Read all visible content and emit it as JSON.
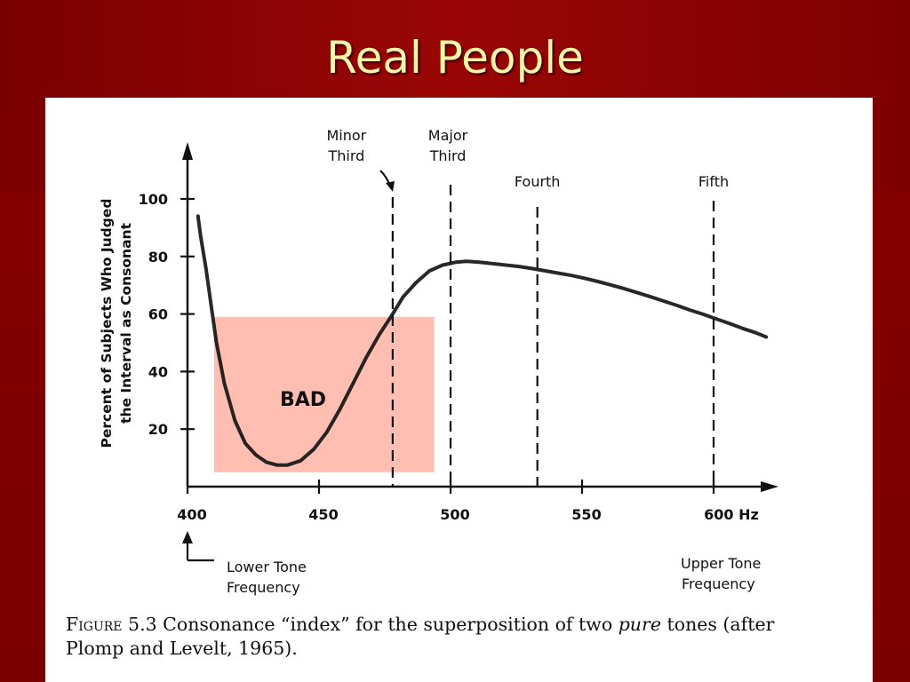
{
  "slide": {
    "title": "Real People"
  },
  "figure": {
    "caption_label": "Figure",
    "caption_number": "5.3",
    "caption_text_before_em": "Consonance “index” for the superposition of two",
    "caption_em": "pure",
    "caption_text_after_em": "tones (after Plomp and Levelt, 1965).",
    "overlay_label": "BAD",
    "overlay_color": "#ffb3a3",
    "lower_tone_label_line1": "Lower Tone",
    "lower_tone_label_line2": "Frequency",
    "upper_tone_label_line1": "Upper Tone",
    "upper_tone_label_line2": "Frequency"
  },
  "chart_data": {
    "type": "line",
    "title": "",
    "xlabel": "",
    "ylabel_line1": "Percent of Subjects Who Judged",
    "ylabel_line2": "the Interval as Consonant",
    "x_ticks": [
      400,
      450,
      500,
      550,
      600
    ],
    "x_tick_labels": [
      "400",
      "450",
      "500",
      "550",
      "600 Hz"
    ],
    "y_ticks": [
      20,
      40,
      60,
      80,
      100
    ],
    "y_tick_labels": [
      "20",
      "40",
      "60",
      "80",
      "100"
    ],
    "xlim": [
      400,
      625
    ],
    "ylim": [
      0,
      118
    ],
    "grid": false,
    "series": [
      {
        "x": [
          404,
          405,
          407,
          409,
          411,
          414,
          418,
          422,
          426,
          430,
          434,
          438,
          443,
          448,
          453,
          458,
          463,
          468,
          473,
          478,
          482,
          487,
          492,
          497,
          502,
          506,
          511,
          516,
          521,
          526,
          531,
          536,
          541,
          546,
          551,
          556,
          561,
          566,
          571,
          576,
          581,
          586,
          591,
          596,
          601,
          606,
          611,
          616,
          620
        ],
        "y": [
          94,
          87,
          76,
          63,
          50,
          36,
          23,
          15,
          11,
          8.5,
          7.5,
          7.5,
          9,
          13,
          19,
          27,
          36,
          45,
          53,
          60,
          66,
          71,
          75,
          77,
          78,
          78.3,
          78,
          77.5,
          77,
          76.5,
          75.8,
          75,
          74.2,
          73.4,
          72.4,
          71.3,
          70.1,
          68.8,
          67.4,
          66,
          64.5,
          63,
          61.4,
          59.9,
          58.3,
          56.7,
          55,
          53.5,
          52
        ]
      }
    ],
    "vertical_markers": [
      {
        "x": 478,
        "label_line1": "Minor",
        "label_line2": "Third"
      },
      {
        "x": 500,
        "label_line1": "Major",
        "label_line2": "Third"
      },
      {
        "x": 533,
        "label_line1": "Fourth",
        "label_line2": ""
      },
      {
        "x": 600,
        "label_line1": "Fifth",
        "label_line2": ""
      }
    ],
    "highlight_region": {
      "x": [
        404,
        486
      ],
      "y": [
        5,
        59
      ]
    }
  }
}
